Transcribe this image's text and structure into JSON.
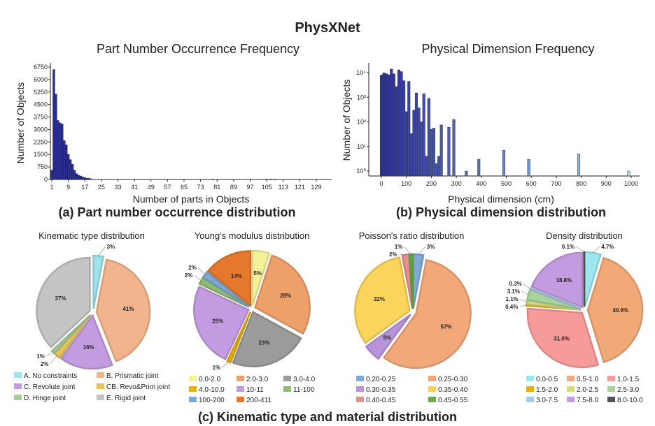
{
  "title": "PhysXNet",
  "chart_data": [
    {
      "type": "bar",
      "title": "Part Number Occurrence Frequency",
      "caption": "(a) Part number occurrence distribution",
      "xlabel": "Number of parts in Objects",
      "ylabel": "Number of Objects",
      "xticks": [
        1,
        9,
        17,
        25,
        33,
        41,
        49,
        57,
        65,
        73,
        81,
        89,
        97,
        105,
        113,
        121,
        129
      ],
      "yticks": [
        0,
        750,
        1500,
        2250,
        3000,
        3750,
        4500,
        5250,
        6000,
        6750
      ],
      "xlim": [
        0,
        136
      ],
      "ylim": [
        0,
        6900
      ],
      "x": [
        1,
        2,
        3,
        4,
        5,
        6,
        7,
        8,
        9,
        10,
        11,
        12,
        13,
        14,
        15,
        16,
        17,
        18,
        19,
        20,
        79,
        105,
        107,
        109
      ],
      "values": [
        560,
        6600,
        5130,
        3540,
        3400,
        3330,
        2330,
        2080,
        1510,
        1190,
        910,
        560,
        350,
        250,
        210,
        150,
        110,
        80,
        70,
        40,
        8,
        12,
        10,
        8
      ],
      "color": "#2b2f9e"
    },
    {
      "type": "bar",
      "title": "Physical Dimension Frequency",
      "caption": "(b) Physical dimension distribution",
      "xlabel": "Physical dimension (cm)",
      "ylabel": "Number of Objects",
      "yscale": "log",
      "xticks": [
        0,
        100,
        200,
        300,
        400,
        500,
        600,
        700,
        800,
        900,
        1000
      ],
      "yticks": [
        1,
        10,
        100,
        1000,
        10000
      ],
      "ytick_labels": [
        "10⁰",
        "10¹",
        "10²",
        "10³",
        "10⁴"
      ],
      "xlim": [
        -25,
        1040
      ],
      "ylim": [
        0.5,
        20000
      ],
      "x": [
        0,
        10,
        20,
        30,
        40,
        50,
        60,
        70,
        80,
        90,
        100,
        110,
        120,
        130,
        140,
        150,
        160,
        170,
        180,
        190,
        200,
        210,
        220,
        230,
        240,
        270,
        290,
        340,
        390,
        490,
        590,
        790,
        990
      ],
      "values": [
        8000,
        9800,
        9000,
        8200,
        14000,
        9000,
        2700,
        13000,
        11000,
        4700,
        260,
        4400,
        33,
        300,
        1500,
        370,
        100,
        1400,
        4,
        900,
        50,
        56,
        2,
        4,
        75,
        60,
        125,
        1,
        3,
        7,
        3,
        5,
        1
      ],
      "color_start": "#2b2f9e",
      "color_end": "#a6dde8"
    },
    {
      "type": "pie",
      "title": "Kinematic type distribution",
      "categories": [
        "A. No constraints",
        "B. Prismatic joint",
        "C. Revolute joint",
        "CB. Revo&Prim joint",
        "D. Hinge joint",
        "E. Rigid joint"
      ],
      "values": [
        3,
        41,
        16,
        2,
        1,
        37
      ],
      "labels": [
        "3%",
        "41%",
        "16%",
        "2%",
        "1%",
        "37%"
      ],
      "colors": [
        "#9ee3ea",
        "#f2b48c",
        "#c39be0",
        "#e8c35a",
        "#a9cc9c",
        "#c4c4c4"
      ]
    },
    {
      "type": "pie",
      "title": "Young's modulus distribution",
      "categories": [
        "0.0-2.0",
        "2.0-3.0",
        "3.0-4.0",
        "4.0-10.0",
        "10-11",
        "11-100",
        "100-200",
        "200-411"
      ],
      "values": [
        5,
        28,
        23,
        1,
        25,
        2,
        2,
        14
      ],
      "labels": [
        "5%",
        "28%",
        "23%",
        "1%",
        "25%",
        "2%",
        "2%",
        "14%"
      ],
      "colors": [
        "#f4f19a",
        "#eea06b",
        "#9b9b9b",
        "#e8b000",
        "#c39be0",
        "#8fbd6f",
        "#7ea8d6",
        "#e6782d"
      ]
    },
    {
      "type": "pie",
      "title": "Poisson's ratio distribution",
      "categories": [
        "0.20-0.25",
        "0.25-0.30",
        "0.30-0.35",
        "0.35-0.40",
        "0.40-0.45",
        "0.45-0.55"
      ],
      "values": [
        3,
        57,
        5,
        32,
        2,
        1
      ],
      "labels": [
        "3%",
        "57%",
        "5%",
        "32%",
        "2%",
        "1%"
      ],
      "colors": [
        "#7fa9d8",
        "#f2a878",
        "#b894dc",
        "#fbd45c",
        "#e88e8e",
        "#6aaa4a"
      ]
    },
    {
      "type": "pie",
      "title": "Density distribution",
      "categories": [
        "0.0-0.5",
        "0.5-1.0",
        "1.0-1.5",
        "1.5-2.0",
        "2.0-2.5",
        "2.5-3.0",
        "3.0-7.5",
        "7.5-8.0",
        "8.0-10.0"
      ],
      "values": [
        4.7,
        40.6,
        31.0,
        0.4,
        1.1,
        3.1,
        0.3,
        18.8,
        0.1
      ],
      "labels": [
        "4.7%",
        "40.6%",
        "31.0%",
        "0.4%",
        "1.1%",
        "3.1%",
        "0.3%",
        "18.8%",
        "0.1%"
      ],
      "colors": [
        "#9ee6ee",
        "#f2a978",
        "#f79a9a",
        "#e8b000",
        "#d5dc7c",
        "#a9d39c",
        "#a9c9e8",
        "#c39be0",
        "#555555"
      ]
    }
  ],
  "caption_c": "(c) Kinematic type and material distribution"
}
